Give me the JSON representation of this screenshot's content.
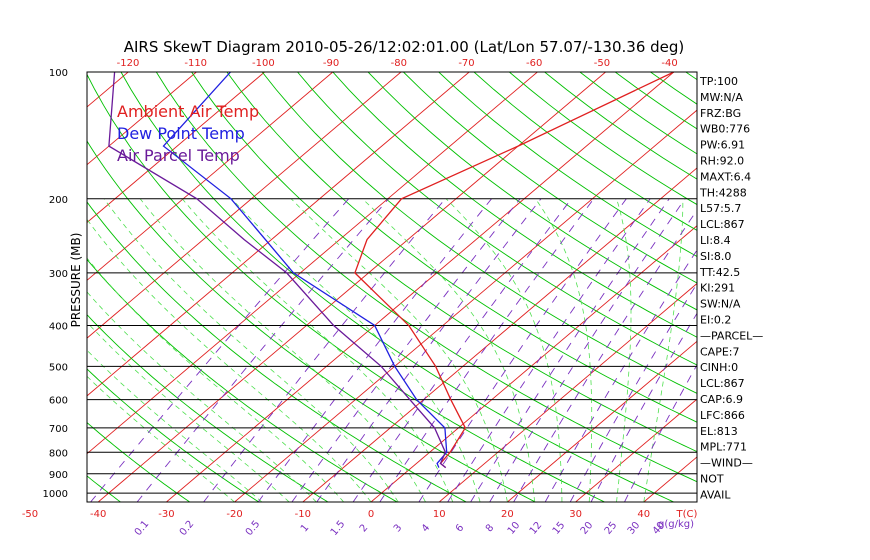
{
  "chart_data": {
    "type": "line",
    "title": "AIRS SkewT Diagram 2010-05-26/12:02:01.00 (Lat/Lon 57.07/-130.36 deg)",
    "ylabel": "PRESSURE (MB)",
    "xlabel_bottom": "T(C)",
    "mixing_ratio_label": "g(g/kg)",
    "yscale": "log",
    "ylim": [
      1050,
      100
    ],
    "xlim": [
      -52,
      47
    ],
    "pressure_ticks": [
      100,
      200,
      300,
      400,
      500,
      600,
      700,
      800,
      900,
      1000
    ],
    "pressure_tick_labels": [
      "100",
      "200",
      "300",
      "400",
      "500",
      "600",
      "700",
      "800",
      "900",
      "1000"
    ],
    "bottom_temp_ticks": [
      -50,
      -40,
      -30,
      -20,
      -10,
      0,
      10,
      20,
      30,
      40
    ],
    "bottom_temp_tick_labels": [
      "-50",
      "-40",
      "-30",
      "-20",
      "-10",
      "0",
      "10",
      "20",
      "30",
      "40"
    ],
    "top_temp_ticks": [
      -120,
      -110,
      -100,
      -90,
      -80,
      -70,
      -60,
      -50,
      -40
    ],
    "top_temp_tick_labels": [
      "-120",
      "-110",
      "-100",
      "-90",
      "-80",
      "-70",
      "-60",
      "-50",
      "-40"
    ],
    "mixing_ratio_labels": [
      "0.1",
      "0.2",
      "0.5",
      "1",
      "1.5",
      "2",
      "3",
      "4",
      "6",
      "8",
      "10",
      "12",
      "15",
      "20",
      "25",
      "30",
      "40"
    ],
    "legend": [
      {
        "name": "Ambient Air Temp",
        "color": "#e02020"
      },
      {
        "name": "Dew Point Temp",
        "color": "#2020e0"
      },
      {
        "name": "Air Parcel Temp",
        "color": "#6a1a9a"
      }
    ],
    "series": [
      {
        "name": "Ambient Air Temp",
        "color": "#e02020",
        "points": [
          [
            870,
            5
          ],
          [
            850,
            3.5
          ],
          [
            800,
            3
          ],
          [
            700,
            1
          ],
          [
            600,
            -6
          ],
          [
            500,
            -14
          ],
          [
            400,
            -25
          ],
          [
            300,
            -42
          ],
          [
            250,
            -46
          ],
          [
            200,
            -48
          ],
          [
            150,
            -40
          ],
          [
            100,
            -30
          ]
        ]
      },
      {
        "name": "Dew Point Temp",
        "color": "#2020e0",
        "points": [
          [
            870,
            4
          ],
          [
            850,
            3
          ],
          [
            800,
            2.5
          ],
          [
            700,
            -2
          ],
          [
            600,
            -11
          ],
          [
            500,
            -20
          ],
          [
            400,
            -30
          ],
          [
            300,
            -51
          ],
          [
            200,
            -73
          ],
          [
            150,
            -92
          ],
          [
            100,
            -95
          ]
        ]
      },
      {
        "name": "Air Parcel Temp",
        "color": "#6a1a9a",
        "points": [
          [
            870,
            5
          ],
          [
            850,
            3.5
          ],
          [
            800,
            2.3
          ],
          [
            700,
            -3.5
          ],
          [
            600,
            -12
          ],
          [
            500,
            -22
          ],
          [
            400,
            -36
          ],
          [
            300,
            -52
          ],
          [
            250,
            -64
          ],
          [
            200,
            -78
          ],
          [
            150,
            -100
          ],
          [
            100,
            -112
          ]
        ]
      }
    ],
    "background_lines": {
      "isotherm_color": "#e02020",
      "dry_adiabat_color": "#00c000",
      "moist_adiabat_color": "#50e050",
      "mixing_ratio_color": "#7a30c0",
      "isobar_color": "#000000"
    },
    "side_panel": [
      "TP:100",
      "MW:N/A",
      "FRZ:BG",
      "WB0:776",
      "PW:6.91",
      "RH:92.0",
      "MAXT:6.4",
      "TH:4288",
      "L57:5.7",
      "LCL:867",
      "LI:8.4",
      "SI:8.0",
      "TT:42.5",
      "KI:291",
      "SW:N/A",
      "EI:0.2",
      "—PARCEL—",
      "CAPE:7",
      "CINH:0",
      "LCL:867",
      "CAP:6.9",
      "LFC:866",
      "EL:813",
      "MPL:771",
      "—WIND—",
      "NOT",
      "AVAIL"
    ]
  }
}
